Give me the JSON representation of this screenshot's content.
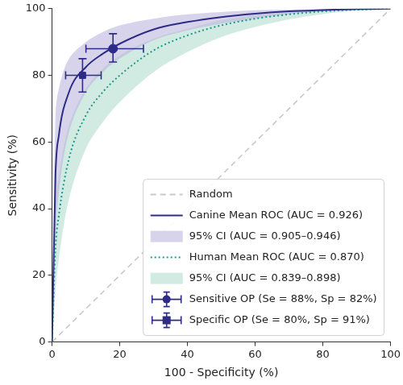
{
  "chart_data": {
    "type": "line",
    "x_label": "100 - Specificity (%)",
    "y_label": "Sensitivity (%)",
    "xlim": [
      0,
      100
    ],
    "ylim": [
      0,
      100
    ],
    "xticks": [
      0,
      20,
      40,
      60,
      80,
      100
    ],
    "yticks": [
      0,
      20,
      40,
      60,
      80,
      100
    ],
    "grid": false,
    "legend": "lower right",
    "x": [
      0,
      1,
      2,
      5,
      10,
      15,
      20,
      30,
      40,
      50,
      60,
      70,
      80,
      90,
      100
    ],
    "series": [
      {
        "name": "Random",
        "type": "line",
        "line_style": "dashed",
        "color": "#c8c8c8",
        "values": [
          0,
          1,
          2,
          5,
          10,
          15,
          20,
          30,
          40,
          50,
          60,
          70,
          80,
          90,
          100
        ]
      },
      {
        "name": "Canine Mean ROC (AUC = 0.926)",
        "type": "line",
        "line_style": "solid",
        "color": "#2e2c86",
        "values": [
          0,
          50,
          62,
          75,
          82.5,
          86.5,
          89.5,
          93.8,
          96,
          97.5,
          98.5,
          99.2,
          99.6,
          99.9,
          100
        ]
      },
      {
        "name": "95% CI (AUC = 0.905–0.946)",
        "type": "band",
        "color": "#bcb6dc",
        "lower": [
          0,
          30,
          45,
          63,
          75,
          81,
          85,
          90.5,
          93.5,
          95.5,
          97,
          98.3,
          99.2,
          99.7,
          100
        ],
        "upper": [
          0,
          68,
          76,
          85,
          90,
          93,
          95,
          97,
          98.3,
          99,
          99.5,
          99.7,
          99.9,
          100,
          100
        ]
      },
      {
        "name": "Human Mean ROC (AUC = 0.870)",
        "type": "line",
        "line_style": "dotted",
        "color": "#1a9b8a",
        "values": [
          0,
          28,
          38,
          55,
          68,
          75,
          80,
          87.5,
          92,
          95,
          97,
          98.3,
          99.2,
          99.7,
          100
        ]
      },
      {
        "name": "95% CI (AUC = 0.839–0.898)",
        "type": "band",
        "color": "#b2dccf",
        "lower": [
          0,
          15,
          25,
          43,
          58,
          66,
          72,
          81,
          87,
          91.5,
          94.5,
          96.8,
          98.4,
          99.4,
          100
        ],
        "upper": [
          0,
          40,
          50,
          65,
          76,
          82,
          86,
          91,
          94,
          96.5,
          98,
          99,
          99.5,
          99.8,
          100
        ]
      },
      {
        "name": "Sensitive OP (Se = 88%, Sp = 82%)",
        "type": "scatter",
        "marker": "circle",
        "color": "#2e2c86",
        "x": [
          18
        ],
        "values": [
          88
        ],
        "x_lower": [
          10
        ],
        "x_upper": [
          27
        ],
        "lower": [
          84
        ],
        "upper": [
          92.5
        ]
      },
      {
        "name": "Specific OP (Se = 80%, Sp = 91%)",
        "type": "scatter",
        "marker": "square",
        "color": "#2e2c86",
        "x": [
          9
        ],
        "values": [
          80
        ],
        "x_lower": [
          4
        ],
        "x_upper": [
          14.5
        ],
        "lower": [
          75
        ],
        "upper": [
          85
        ]
      }
    ]
  }
}
